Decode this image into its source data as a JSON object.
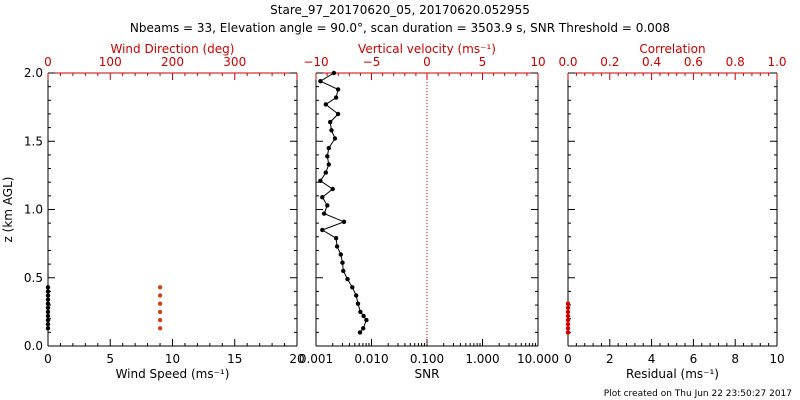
{
  "title_line1": "Stare_97_20170620_05, 20170620.052955",
  "title_line2": "Nbeams = 33, Elevation angle = 90.0°, scan duration = 3503.9 s, SNR Threshold = 0.008",
  "footer": "Plot created on Thu Jun 22 23:50:27 2017",
  "colors": {
    "primary": "#000000",
    "accent": "#cc0000",
    "wind_dir_points": "#c8461e"
  },
  "chart_data": [
    {
      "type": "scatter",
      "panel": "wind",
      "ylabel": "z (km AGL)",
      "ylim": [
        0,
        2
      ],
      "yticks": [
        "0.0",
        "0.5",
        "1.0",
        "1.5",
        "2.0"
      ],
      "bottom_axis": {
        "label": "Wind Speed (ms⁻¹)",
        "lim": [
          0,
          20
        ],
        "ticks": [
          "0",
          "5",
          "10",
          "15",
          "20"
        ]
      },
      "top_axis": {
        "label": "Wind Direction (deg)",
        "lim": [
          0,
          400
        ],
        "ticks": [
          "0",
          "100",
          "200",
          "300"
        ],
        "color": "#cc0000"
      },
      "series": [
        {
          "axis": "bottom",
          "color": "#000000",
          "points": [
            [
              0,
              0.13
            ],
            [
              0,
              0.16
            ],
            [
              0,
              0.19
            ],
            [
              0,
              0.22
            ],
            [
              0,
              0.25
            ],
            [
              0,
              0.28
            ],
            [
              0,
              0.31
            ],
            [
              0,
              0.34
            ],
            [
              0,
              0.37
            ],
            [
              0,
              0.4
            ],
            [
              0,
              0.43
            ]
          ]
        },
        {
          "axis": "top",
          "color": "#c8461e",
          "points": [
            [
              180,
              0.13
            ],
            [
              180,
              0.19
            ],
            [
              180,
              0.25
            ],
            [
              180,
              0.31
            ],
            [
              180,
              0.37
            ],
            [
              180,
              0.43
            ]
          ]
        }
      ]
    },
    {
      "type": "line",
      "panel": "snr",
      "ylim": [
        0,
        2
      ],
      "bottom_axis": {
        "label": "SNR",
        "scale": "log",
        "lim": [
          0.001,
          10
        ],
        "ticks": [
          "0.001",
          "0.010",
          "0.100",
          "1.000",
          "10.000"
        ]
      },
      "top_axis": {
        "label": "Vertical velocity (ms⁻¹)",
        "lim": [
          -10,
          10
        ],
        "ticks": [
          "−10",
          "−5",
          "0",
          "5",
          "10"
        ],
        "color": "#cc0000",
        "zero_line": "dotted"
      },
      "series": [
        {
          "name": "",
          "axis": "bottom",
          "color": "#000000",
          "points": [
            [
              0.0062,
              0.1
            ],
            [
              0.0071,
              0.13
            ],
            [
              0.0081,
              0.19
            ],
            [
              0.0072,
              0.22
            ],
            [
              0.0063,
              0.25
            ],
            [
              0.0057,
              0.31
            ],
            [
              0.0053,
              0.37
            ],
            [
              0.0045,
              0.43
            ],
            [
              0.0037,
              0.49
            ],
            [
              0.0031,
              0.55
            ],
            [
              0.003,
              0.61
            ],
            [
              0.0028,
              0.67
            ],
            [
              0.0024,
              0.73
            ],
            [
              0.0023,
              0.79
            ],
            [
              0.0013,
              0.85
            ],
            [
              0.0032,
              0.91
            ],
            [
              0.0014,
              0.97
            ],
            [
              0.0016,
              1.03
            ],
            [
              0.0013,
              1.09
            ],
            [
              0.002,
              1.15
            ],
            [
              0.0012,
              1.21
            ],
            [
              0.0015,
              1.27
            ],
            [
              0.0017,
              1.33
            ],
            [
              0.0016,
              1.39
            ],
            [
              0.0017,
              1.45
            ],
            [
              0.0022,
              1.52
            ],
            [
              0.0019,
              1.58
            ],
            [
              0.0018,
              1.64
            ],
            [
              0.0025,
              1.7
            ],
            [
              0.0015,
              1.77
            ],
            [
              0.0023,
              1.82
            ],
            [
              0.0025,
              1.88
            ],
            [
              0.0012,
              1.94
            ],
            [
              0.0021,
              2.0
            ]
          ]
        }
      ]
    },
    {
      "type": "scatter",
      "panel": "correlation",
      "ylim": [
        0,
        2
      ],
      "bottom_axis": {
        "label": "Residual (ms⁻¹)",
        "lim": [
          0,
          10
        ],
        "ticks": [
          "0",
          "2",
          "4",
          "6",
          "8",
          "10"
        ]
      },
      "top_axis": {
        "label": "Correlation",
        "lim": [
          0,
          1
        ],
        "ticks": [
          "0.0",
          "0.2",
          "0.4",
          "0.6",
          "0.8",
          "1.0"
        ],
        "color": "#cc0000"
      },
      "series": [
        {
          "axis": "bottom",
          "color": "#cc0000",
          "points": [
            [
              0,
              0.1
            ],
            [
              0,
              0.13
            ],
            [
              0,
              0.16
            ],
            [
              0,
              0.19
            ],
            [
              0,
              0.22
            ],
            [
              0,
              0.25
            ],
            [
              0,
              0.28
            ],
            [
              0,
              0.31
            ]
          ]
        }
      ]
    }
  ]
}
